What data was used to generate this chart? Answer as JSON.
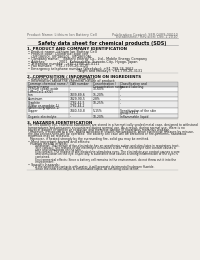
{
  "bg_color": "#f0ede8",
  "header_left": "Product Name: Lithium Ion Battery Cell",
  "header_right_line1": "Publication Control: SER-0489-00010",
  "header_right_line2": "Established / Revision: Dec.1.2010",
  "title": "Safety data sheet for chemical products (SDS)",
  "section1_title": "1. PRODUCT AND COMPANY IDENTIFICATION",
  "section1_lines": [
    "• Product name: Lithium Ion Battery Cell",
    "• Product code: Cylindrical-type cell",
    "   (IVF18650J, IVF18650L, IVF18650A)",
    "• Company name:    Battery Energy Co., Ltd., Mobile Energy Company",
    "• Address:            2001  Kaminakata, Sumoto-City, Hyogo, Japan",
    "• Telephone number:   +81-(799)-26-4111",
    "• Fax number:   +81-(799)-26-4120",
    "• Emergency telephone number (Weekday): +81-799-26-3662",
    "                                            (Night and holiday): +81-799-26-3131"
  ],
  "section2_title": "2. COMPOSITION / INFORMATION ON INGREDIENTS",
  "section2_intro": "• Substance or preparation: Preparation",
  "section2_subheader": "• Information about the chemical nature of product:",
  "table_col_headers": [
    "Common chemical name /",
    "CAS number",
    "Concentration /",
    "Classification and"
  ],
  "table_col_headers2": [
    "Several name",
    "",
    "Concentration range",
    "hazard labeling"
  ],
  "table_rows": [
    [
      "Lithium cobalt oxide\n(LiMnxCo(1-x)O2)",
      "-",
      "30-60%",
      "-"
    ],
    [
      "Iron",
      "7439-89-6",
      "15-20%",
      "-"
    ],
    [
      "Aluminum",
      "7429-90-5",
      "2-8%",
      "-"
    ],
    [
      "Graphite\n(Flake or graphite-1)\n(Artificial graphite-1)",
      "7782-42-5\n7782-44-2",
      "10-25%",
      "-"
    ],
    [
      "Copper",
      "7440-50-8",
      "5-15%",
      "Sensitization of the skin\ngroup R43,2"
    ],
    [
      "Organic electrolyte",
      "-",
      "10-20%",
      "Inflammable liquid"
    ]
  ],
  "section3_title": "3. HAZARDS IDENTIFICATION",
  "section3_body": [
    "For this battery cell, chemical substances are stored in a hermetically sealed metal case, designed to withstand",
    "temperatures and pressures encountered during normal use. As a result, during normal use, there is no",
    "physical danger of ignition or explosion and therefore danger of hazardous materials leakage.",
    "  However, if exposed to a fire, added mechanical shocks, decomposed, when electrolyte releases by misuse,",
    "the gas release vent will be operated. The battery cell case will be breached or fire-performs, hazardous",
    "materials may be released.",
    "  Moreover, if heated strongly by the surrounding fire, solid gas may be emitted."
  ],
  "s3_bullet1": "• Most important hazard and effects:",
  "s3_human": "Human health effects:",
  "s3_human_lines": [
    "      Inhalation: The release of the electrolyte has an anesthesia action and stimulates in respiratory tract.",
    "      Skin contact: The release of the electrolyte stimulates a skin. The electrolyte skin contact causes a",
    "      sore and stimulation on the skin.",
    "      Eye contact: The release of the electrolyte stimulates eyes. The electrolyte eye contact causes a sore",
    "      and stimulation on the eye. Especially, a substance that causes a strong inflammation of the eyes is",
    "      contained.",
    "",
    "      Environmental effects: Since a battery cell remains in the environment, do not throw out it into the",
    "      environment."
  ],
  "s3_specific": "• Specific hazards:",
  "s3_specific_lines": [
    "      If the electrolyte contacts with water, it will generate detrimental hydrogen fluoride.",
    "      Since the neat electrolyte is inflammable liquid, do not bring close to fire."
  ],
  "footer_line": true
}
